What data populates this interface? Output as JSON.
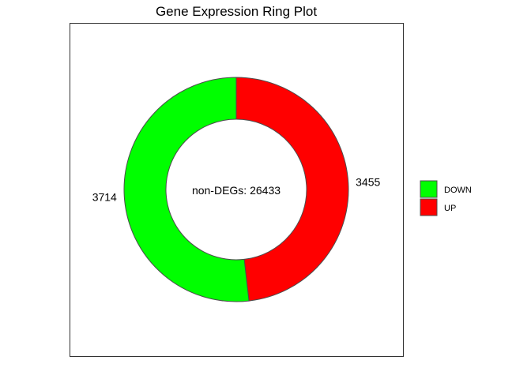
{
  "chart_data": {
    "type": "pie",
    "subtype": "donut",
    "title": "Gene Expression Ring Plot",
    "center_label": "non-DEGs: 26433",
    "slices": [
      {
        "name": "UP",
        "value": 3455,
        "label": "3455",
        "color": "#ff0000"
      },
      {
        "name": "DOWN",
        "value": 3714,
        "label": "3714",
        "color": "#00ff00"
      }
    ],
    "legend": {
      "position": "right",
      "entries": [
        {
          "label": "DOWN",
          "color": "#00ff00"
        },
        {
          "label": "UP",
          "color": "#ff0000"
        }
      ]
    },
    "start_angle": "top",
    "direction": "clockwise",
    "border_color": "#4d4d4d"
  }
}
